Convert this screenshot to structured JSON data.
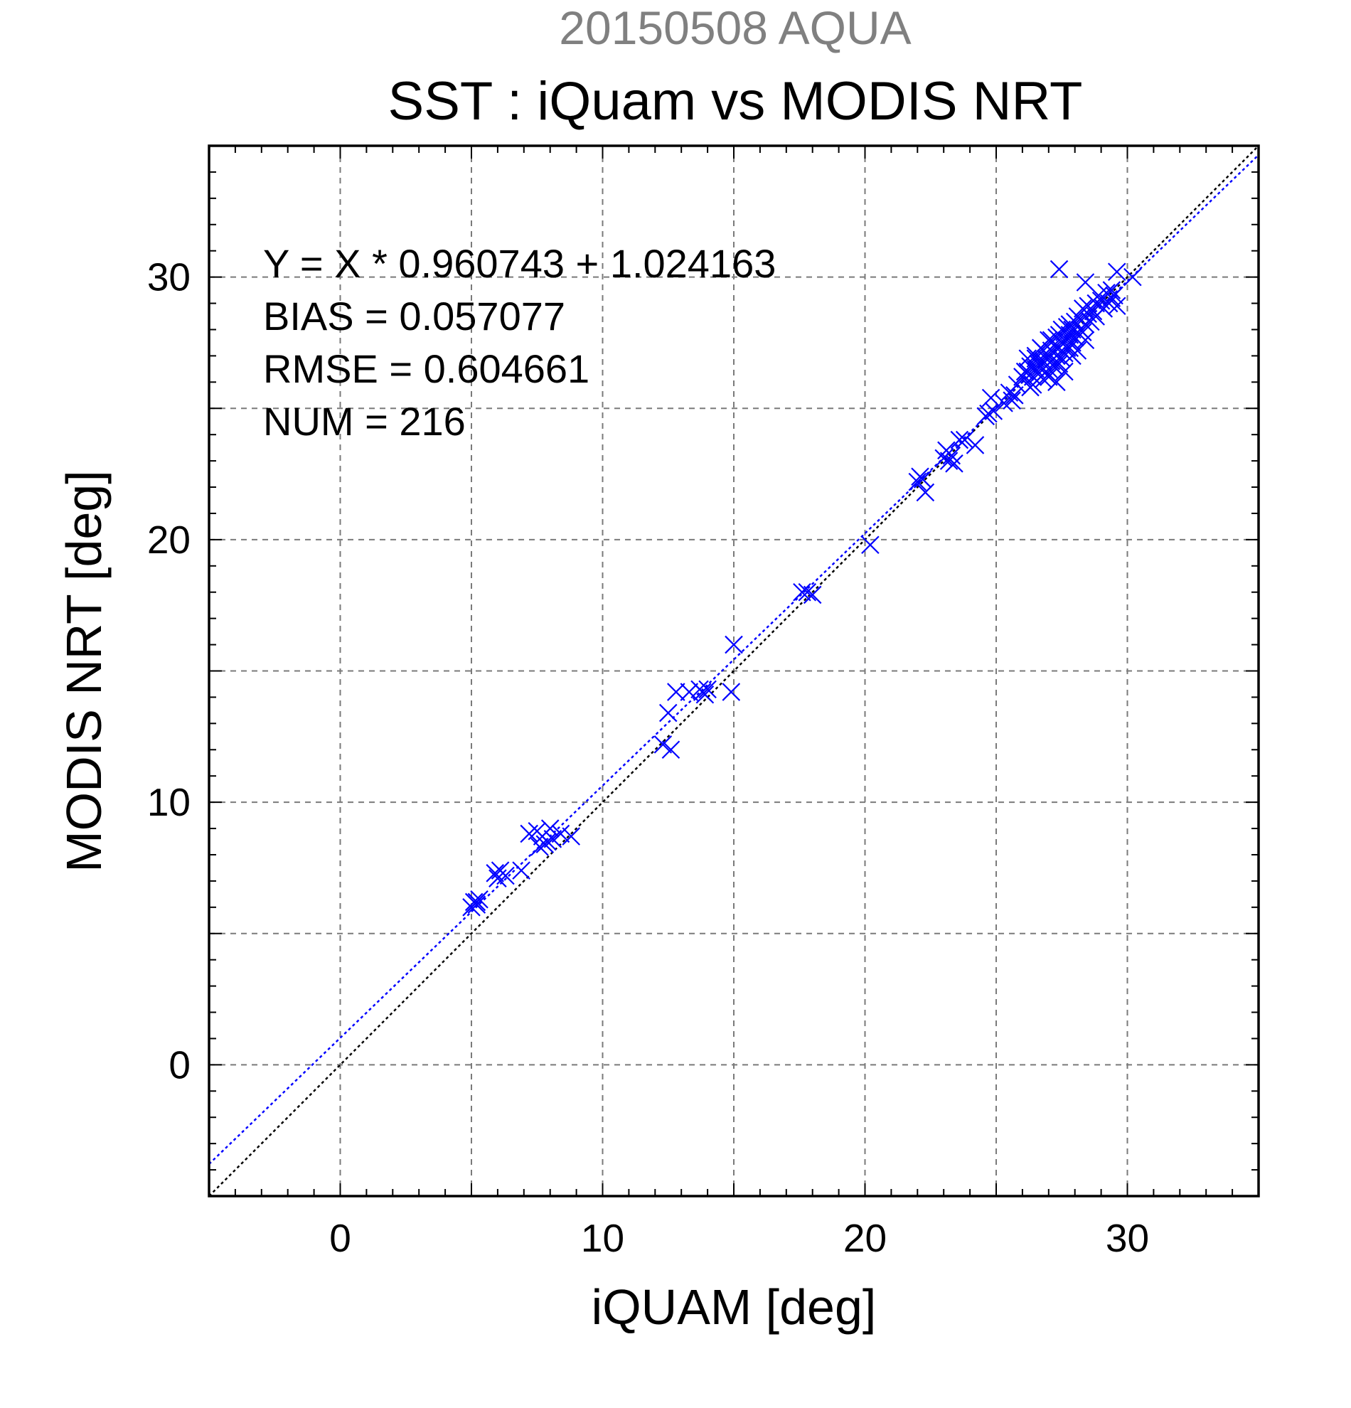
{
  "header": {
    "supertitle": "20150508 AQUA",
    "title": "SST : iQuam vs MODIS NRT"
  },
  "stats": {
    "equation": "Y = X * 0.960743 + 1.024163",
    "bias": "BIAS = 0.057077",
    "rmse": "RMSE = 0.604661",
    "num": "NUM = 216"
  },
  "chart_data": {
    "type": "scatter",
    "title": "SST : iQuam vs MODIS NRT",
    "subtitle": "20150508 AQUA",
    "xlabel": "iQUAM [deg]",
    "ylabel": "MODIS NRT [deg]",
    "xlim": [
      -5,
      35
    ],
    "ylim": [
      -5,
      35
    ],
    "xticks": [
      0,
      10,
      20,
      30
    ],
    "yticks": [
      0,
      10,
      20,
      30
    ],
    "xtick_labels": [
      "0",
      "10",
      "20",
      "30"
    ],
    "ytick_labels": [
      "0",
      "10",
      "20",
      "30"
    ],
    "grid": true,
    "marker": "x",
    "colors": {
      "points": "#0000ff",
      "fit_line": "#0000ff",
      "identity_line": "#000000",
      "grid": "#7a7a7a"
    },
    "fit": {
      "slope": 0.960743,
      "intercept": 1.024163
    },
    "identity": {
      "slope": 1,
      "intercept": 0
    },
    "bias": 0.057077,
    "rmse": 0.604661,
    "num": 216,
    "points": [
      [
        5.1,
        6.2
      ],
      [
        5.2,
        6.1
      ],
      [
        5.3,
        6.3
      ],
      [
        5.0,
        6.0
      ],
      [
        5.2,
        6.2
      ],
      [
        5.9,
        7.3
      ],
      [
        6.1,
        7.4
      ],
      [
        6.3,
        7.2
      ],
      [
        6.0,
        7.1
      ],
      [
        6.9,
        7.4
      ],
      [
        7.2,
        8.8
      ],
      [
        7.5,
        8.9
      ],
      [
        7.7,
        8.7
      ],
      [
        7.8,
        8.4
      ],
      [
        7.6,
        8.3
      ],
      [
        8.0,
        9.0
      ],
      [
        8.1,
        8.6
      ],
      [
        8.4,
        8.8
      ],
      [
        8.8,
        8.7
      ],
      [
        7.9,
        8.5
      ],
      [
        12.3,
        12.2
      ],
      [
        12.6,
        12.0
      ],
      [
        12.5,
        13.4
      ],
      [
        12.8,
        14.2
      ],
      [
        13.3,
        14.2
      ],
      [
        13.8,
        14.2
      ],
      [
        14.0,
        14.3
      ],
      [
        13.9,
        14.1
      ],
      [
        13.7,
        14.3
      ],
      [
        14.9,
        14.2
      ],
      [
        15.0,
        16.0
      ],
      [
        17.6,
        18.0
      ],
      [
        17.8,
        18.0
      ],
      [
        18.0,
        17.9
      ],
      [
        20.2,
        19.8
      ],
      [
        22.0,
        22.2
      ],
      [
        22.1,
        22.4
      ],
      [
        22.2,
        22.3
      ],
      [
        22.3,
        21.8
      ],
      [
        23.0,
        23.1
      ],
      [
        23.2,
        23.0
      ],
      [
        23.4,
        22.9
      ],
      [
        23.1,
        23.4
      ],
      [
        23.3,
        23.2
      ],
      [
        23.6,
        23.8
      ],
      [
        23.8,
        23.8
      ],
      [
        24.2,
        23.6
      ],
      [
        24.6,
        24.7
      ],
      [
        24.8,
        25.4
      ],
      [
        24.9,
        24.9
      ],
      [
        24.7,
        24.8
      ],
      [
        25.3,
        25.2
      ],
      [
        25.5,
        25.6
      ],
      [
        25.6,
        25.3
      ],
      [
        25.7,
        25.5
      ],
      [
        25.8,
        25.9
      ],
      [
        26.0,
        26.2
      ],
      [
        26.1,
        26.4
      ],
      [
        26.2,
        26.9
      ],
      [
        26.3,
        26.6
      ],
      [
        26.3,
        25.8
      ],
      [
        26.4,
        26.2
      ],
      [
        26.5,
        26.5
      ],
      [
        26.5,
        27.0
      ],
      [
        26.6,
        26.7
      ],
      [
        26.6,
        26.3
      ],
      [
        26.7,
        26.6
      ],
      [
        26.7,
        27.3
      ],
      [
        26.8,
        26.8
      ],
      [
        26.8,
        26.1
      ],
      [
        26.9,
        26.9
      ],
      [
        26.9,
        27.1
      ],
      [
        26.9,
        26.4
      ],
      [
        27.0,
        27.0
      ],
      [
        27.0,
        26.5
      ],
      [
        27.0,
        27.6
      ],
      [
        27.1,
        26.8
      ],
      [
        27.1,
        27.2
      ],
      [
        27.2,
        27.4
      ],
      [
        27.2,
        26.6
      ],
      [
        27.3,
        27.7
      ],
      [
        27.3,
        27.0
      ],
      [
        27.3,
        26.0
      ],
      [
        27.4,
        27.3
      ],
      [
        27.4,
        27.8
      ],
      [
        27.4,
        26.7
      ],
      [
        27.5,
        27.5
      ],
      [
        27.5,
        26.9
      ],
      [
        27.6,
        27.9
      ],
      [
        27.6,
        27.1
      ],
      [
        27.6,
        26.4
      ],
      [
        27.7,
        27.6
      ],
      [
        27.7,
        28.1
      ],
      [
        27.7,
        27.3
      ],
      [
        27.8,
        27.8
      ],
      [
        27.8,
        28.2
      ],
      [
        27.9,
        27.5
      ],
      [
        27.9,
        28.0
      ],
      [
        27.9,
        27.0
      ],
      [
        28.0,
        28.3
      ],
      [
        28.0,
        27.7
      ],
      [
        28.1,
        27.2
      ],
      [
        28.2,
        28.0
      ],
      [
        28.2,
        28.4
      ],
      [
        28.3,
        27.9
      ],
      [
        28.4,
        28.2
      ],
      [
        28.4,
        27.6
      ],
      [
        28.5,
        28.6
      ],
      [
        28.5,
        28.9
      ],
      [
        28.6,
        28.3
      ],
      [
        28.7,
        28.7
      ],
      [
        28.8,
        29.0
      ],
      [
        28.8,
        28.5
      ],
      [
        28.9,
        29.3
      ],
      [
        29.0,
        29.1
      ],
      [
        29.1,
        28.8
      ],
      [
        29.2,
        29.4
      ],
      [
        29.3,
        29.0
      ],
      [
        29.4,
        29.5
      ],
      [
        29.4,
        29.2
      ],
      [
        29.5,
        29.3
      ],
      [
        29.6,
        30.2
      ],
      [
        30.2,
        30.0
      ],
      [
        27.4,
        30.3
      ],
      [
        28.4,
        29.8
      ],
      [
        29.6,
        28.9
      ],
      [
        26.2,
        26.4
      ],
      [
        26.5,
        26.9
      ],
      [
        26.8,
        27.2
      ],
      [
        27.1,
        27.6
      ],
      [
        27.5,
        28.0
      ],
      [
        27.8,
        27.3
      ],
      [
        28.1,
        28.5
      ],
      [
        28.3,
        28.8
      ],
      [
        26.4,
        25.9
      ],
      [
        27.0,
        26.2
      ]
    ]
  }
}
